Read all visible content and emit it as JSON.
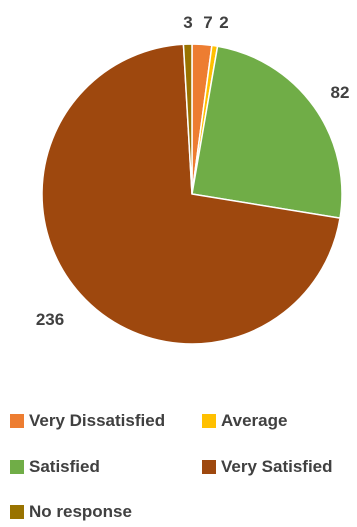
{
  "chart_data": {
    "type": "pie",
    "title": "",
    "categories": [
      "Very Dissatisfied",
      "Average",
      "Satisfied",
      "Very Satisfied",
      "No response"
    ],
    "values": [
      7,
      2,
      82,
      236,
      3
    ],
    "data_labels": [
      "7",
      "2",
      "82",
      "236",
      "3"
    ],
    "colors": [
      "#ED7D31",
      "#FFC000",
      "#70AD47",
      "#9E480E",
      "#997300"
    ],
    "legend_position": "bottom",
    "start": "top, clockwise"
  }
}
